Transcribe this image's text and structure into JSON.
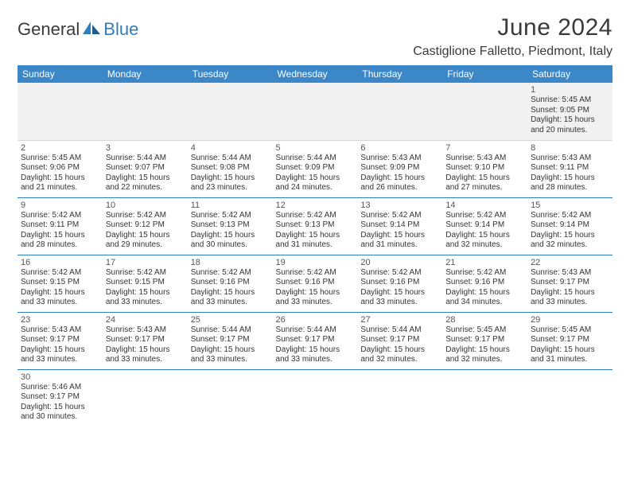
{
  "branding": {
    "logo_word1": "General",
    "logo_word2": "Blue",
    "logo_color_primary": "#3a3a3a",
    "logo_color_accent": "#2f7ebc"
  },
  "header": {
    "month_title": "June 2024",
    "location": "Castiglione Falletto, Piedmont, Italy"
  },
  "calendar": {
    "day_headers": [
      "Sunday",
      "Monday",
      "Tuesday",
      "Wednesday",
      "Thursday",
      "Friday",
      "Saturday"
    ],
    "header_bg": "#3b87c8",
    "header_fg": "#ffffff",
    "row_border_color": "#2f7ebc",
    "blank_bg": "#f1f1f1",
    "font_size_day": 11,
    "font_size_body": 10,
    "weeks": [
      [
        null,
        null,
        null,
        null,
        null,
        null,
        {
          "n": "1",
          "sr": "Sunrise: 5:45 AM",
          "ss": "Sunset: 9:05 PM",
          "d1": "Daylight: 15 hours",
          "d2": "and 20 minutes."
        }
      ],
      [
        {
          "n": "2",
          "sr": "Sunrise: 5:45 AM",
          "ss": "Sunset: 9:06 PM",
          "d1": "Daylight: 15 hours",
          "d2": "and 21 minutes."
        },
        {
          "n": "3",
          "sr": "Sunrise: 5:44 AM",
          "ss": "Sunset: 9:07 PM",
          "d1": "Daylight: 15 hours",
          "d2": "and 22 minutes."
        },
        {
          "n": "4",
          "sr": "Sunrise: 5:44 AM",
          "ss": "Sunset: 9:08 PM",
          "d1": "Daylight: 15 hours",
          "d2": "and 23 minutes."
        },
        {
          "n": "5",
          "sr": "Sunrise: 5:44 AM",
          "ss": "Sunset: 9:09 PM",
          "d1": "Daylight: 15 hours",
          "d2": "and 24 minutes."
        },
        {
          "n": "6",
          "sr": "Sunrise: 5:43 AM",
          "ss": "Sunset: 9:09 PM",
          "d1": "Daylight: 15 hours",
          "d2": "and 26 minutes."
        },
        {
          "n": "7",
          "sr": "Sunrise: 5:43 AM",
          "ss": "Sunset: 9:10 PM",
          "d1": "Daylight: 15 hours",
          "d2": "and 27 minutes."
        },
        {
          "n": "8",
          "sr": "Sunrise: 5:43 AM",
          "ss": "Sunset: 9:11 PM",
          "d1": "Daylight: 15 hours",
          "d2": "and 28 minutes."
        }
      ],
      [
        {
          "n": "9",
          "sr": "Sunrise: 5:42 AM",
          "ss": "Sunset: 9:11 PM",
          "d1": "Daylight: 15 hours",
          "d2": "and 28 minutes."
        },
        {
          "n": "10",
          "sr": "Sunrise: 5:42 AM",
          "ss": "Sunset: 9:12 PM",
          "d1": "Daylight: 15 hours",
          "d2": "and 29 minutes."
        },
        {
          "n": "11",
          "sr": "Sunrise: 5:42 AM",
          "ss": "Sunset: 9:13 PM",
          "d1": "Daylight: 15 hours",
          "d2": "and 30 minutes."
        },
        {
          "n": "12",
          "sr": "Sunrise: 5:42 AM",
          "ss": "Sunset: 9:13 PM",
          "d1": "Daylight: 15 hours",
          "d2": "and 31 minutes."
        },
        {
          "n": "13",
          "sr": "Sunrise: 5:42 AM",
          "ss": "Sunset: 9:14 PM",
          "d1": "Daylight: 15 hours",
          "d2": "and 31 minutes."
        },
        {
          "n": "14",
          "sr": "Sunrise: 5:42 AM",
          "ss": "Sunset: 9:14 PM",
          "d1": "Daylight: 15 hours",
          "d2": "and 32 minutes."
        },
        {
          "n": "15",
          "sr": "Sunrise: 5:42 AM",
          "ss": "Sunset: 9:14 PM",
          "d1": "Daylight: 15 hours",
          "d2": "and 32 minutes."
        }
      ],
      [
        {
          "n": "16",
          "sr": "Sunrise: 5:42 AM",
          "ss": "Sunset: 9:15 PM",
          "d1": "Daylight: 15 hours",
          "d2": "and 33 minutes."
        },
        {
          "n": "17",
          "sr": "Sunrise: 5:42 AM",
          "ss": "Sunset: 9:15 PM",
          "d1": "Daylight: 15 hours",
          "d2": "and 33 minutes."
        },
        {
          "n": "18",
          "sr": "Sunrise: 5:42 AM",
          "ss": "Sunset: 9:16 PM",
          "d1": "Daylight: 15 hours",
          "d2": "and 33 minutes."
        },
        {
          "n": "19",
          "sr": "Sunrise: 5:42 AM",
          "ss": "Sunset: 9:16 PM",
          "d1": "Daylight: 15 hours",
          "d2": "and 33 minutes."
        },
        {
          "n": "20",
          "sr": "Sunrise: 5:42 AM",
          "ss": "Sunset: 9:16 PM",
          "d1": "Daylight: 15 hours",
          "d2": "and 33 minutes."
        },
        {
          "n": "21",
          "sr": "Sunrise: 5:42 AM",
          "ss": "Sunset: 9:16 PM",
          "d1": "Daylight: 15 hours",
          "d2": "and 34 minutes."
        },
        {
          "n": "22",
          "sr": "Sunrise: 5:43 AM",
          "ss": "Sunset: 9:17 PM",
          "d1": "Daylight: 15 hours",
          "d2": "and 33 minutes."
        }
      ],
      [
        {
          "n": "23",
          "sr": "Sunrise: 5:43 AM",
          "ss": "Sunset: 9:17 PM",
          "d1": "Daylight: 15 hours",
          "d2": "and 33 minutes."
        },
        {
          "n": "24",
          "sr": "Sunrise: 5:43 AM",
          "ss": "Sunset: 9:17 PM",
          "d1": "Daylight: 15 hours",
          "d2": "and 33 minutes."
        },
        {
          "n": "25",
          "sr": "Sunrise: 5:44 AM",
          "ss": "Sunset: 9:17 PM",
          "d1": "Daylight: 15 hours",
          "d2": "and 33 minutes."
        },
        {
          "n": "26",
          "sr": "Sunrise: 5:44 AM",
          "ss": "Sunset: 9:17 PM",
          "d1": "Daylight: 15 hours",
          "d2": "and 33 minutes."
        },
        {
          "n": "27",
          "sr": "Sunrise: 5:44 AM",
          "ss": "Sunset: 9:17 PM",
          "d1": "Daylight: 15 hours",
          "d2": "and 32 minutes."
        },
        {
          "n": "28",
          "sr": "Sunrise: 5:45 AM",
          "ss": "Sunset: 9:17 PM",
          "d1": "Daylight: 15 hours",
          "d2": "and 32 minutes."
        },
        {
          "n": "29",
          "sr": "Sunrise: 5:45 AM",
          "ss": "Sunset: 9:17 PM",
          "d1": "Daylight: 15 hours",
          "d2": "and 31 minutes."
        }
      ],
      [
        {
          "n": "30",
          "sr": "Sunrise: 5:46 AM",
          "ss": "Sunset: 9:17 PM",
          "d1": "Daylight: 15 hours",
          "d2": "and 30 minutes."
        },
        null,
        null,
        null,
        null,
        null,
        null
      ]
    ]
  }
}
